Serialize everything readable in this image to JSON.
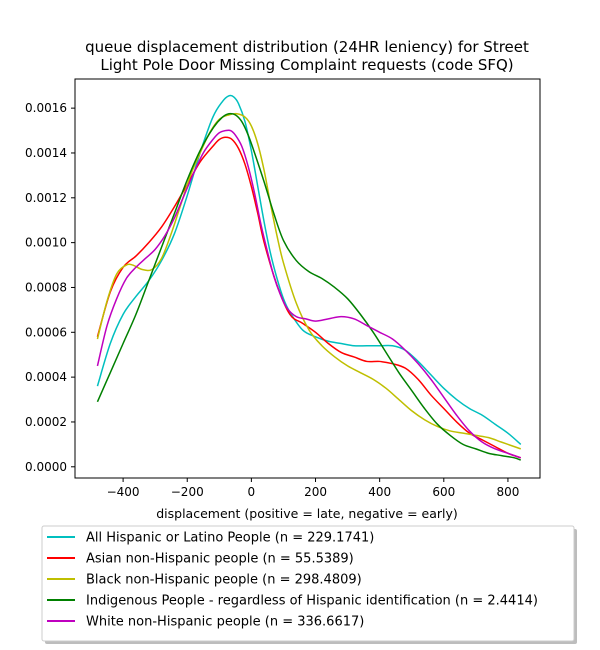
{
  "chart_data": {
    "type": "line",
    "title": [
      "queue displacement distribution (24HR leniency) for Street",
      "Light Pole Door Missing Complaint  requests (code SFQ)"
    ],
    "xlabel": "displacement (positive = late, negative = early)",
    "ylabel": "",
    "xlim": [
      -550,
      900
    ],
    "ylim": [
      -5e-05,
      0.00173
    ],
    "xticks": [
      -400,
      -200,
      0,
      200,
      400,
      600,
      800
    ],
    "xtick_labels": [
      "−400",
      "−200",
      "0",
      "200",
      "400",
      "600",
      "800"
    ],
    "yticks": [
      0.0,
      0.0002,
      0.0004,
      0.0006,
      0.0008,
      0.001,
      0.0012,
      0.0014,
      0.0016
    ],
    "ytick_labels": [
      "0.0000",
      "0.0002",
      "0.0004",
      "0.0006",
      "0.0008",
      "0.0010",
      "0.0012",
      "0.0014",
      "0.0016"
    ],
    "grid": false,
    "legend_position": "below",
    "series": [
      {
        "name": "All Hispanic or Latino People (n = 229.1741)",
        "color": "#00bfbf",
        "x": [
          -480,
          -440,
          -400,
          -360,
          -320,
          -280,
          -240,
          -200,
          -160,
          -120,
          -90,
          -70,
          -55,
          -40,
          -20,
          0,
          20,
          40,
          60,
          80,
          100,
          120,
          160,
          200,
          240,
          280,
          320,
          360,
          400,
          440,
          480,
          520,
          560,
          600,
          640,
          680,
          720,
          760,
          800,
          840
        ],
        "y": [
          0.00036,
          0.00055,
          0.00068,
          0.00076,
          0.00083,
          0.00092,
          0.00104,
          0.00121,
          0.0014,
          0.00156,
          0.00163,
          0.001655,
          0.00165,
          0.00162,
          0.00154,
          0.00141,
          0.00125,
          0.00109,
          0.00095,
          0.00084,
          0.00075,
          0.00069,
          0.00061,
          0.00058,
          0.00056,
          0.00055,
          0.00054,
          0.00054,
          0.00054,
          0.00054,
          0.00052,
          0.00047,
          0.00041,
          0.00035,
          0.0003,
          0.00026,
          0.00023,
          0.00019,
          0.00015,
          0.0001
        ]
      },
      {
        "name": "Asian non-Hispanic people (n = 55.5389)",
        "color": "#ff0000",
        "x": [
          -480,
          -440,
          -400,
          -360,
          -320,
          -280,
          -240,
          -200,
          -160,
          -120,
          -100,
          -80,
          -60,
          -40,
          -20,
          0,
          20,
          40,
          80,
          120,
          160,
          200,
          240,
          280,
          320,
          360,
          400,
          440,
          480,
          520,
          560,
          600,
          640,
          680,
          720,
          760,
          800,
          840
        ],
        "y": [
          0.00058,
          0.00078,
          0.00089,
          0.00094,
          0.001,
          0.00107,
          0.00116,
          0.00126,
          0.00136,
          0.00143,
          0.00146,
          0.00147,
          0.00146,
          0.00142,
          0.00135,
          0.00125,
          0.00113,
          0.001,
          0.00081,
          0.00068,
          0.00064,
          0.0006,
          0.00055,
          0.00051,
          0.00049,
          0.00047,
          0.00047,
          0.00046,
          0.00044,
          0.00039,
          0.00032,
          0.00026,
          0.0002,
          0.00015,
          0.00012,
          9e-05,
          6e-05,
          4e-05
        ]
      },
      {
        "name": "Black non-Hispanic people (n = 298.4809)",
        "color": "#bfbf00",
        "x": [
          -480,
          -450,
          -420,
          -390,
          -370,
          -340,
          -310,
          -280,
          -250,
          -220,
          -190,
          -160,
          -130,
          -100,
          -70,
          -45,
          -20,
          0,
          20,
          40,
          60,
          80,
          100,
          140,
          180,
          220,
          260,
          300,
          340,
          380,
          420,
          460,
          500,
          540,
          580,
          620,
          660,
          700,
          740,
          780,
          820,
          840
        ],
        "y": [
          0.00057,
          0.00074,
          0.00086,
          0.0009,
          0.0009,
          0.00088,
          0.00088,
          0.00093,
          0.00104,
          0.00117,
          0.0013,
          0.0014,
          0.00149,
          0.00155,
          0.00157,
          0.001575,
          0.00156,
          0.00152,
          0.00144,
          0.00132,
          0.00117,
          0.00103,
          0.00091,
          0.00073,
          0.00061,
          0.00054,
          0.00049,
          0.00045,
          0.00042,
          0.00039,
          0.00035,
          0.0003,
          0.00025,
          0.00021,
          0.00018,
          0.00016,
          0.00015,
          0.00014,
          0.00013,
          0.00011,
          9e-05,
          8e-05
        ]
      },
      {
        "name": "Indigenous People - regardless of Hispanic identification (n = 2.4414)",
        "color": "#008000",
        "x": [
          -480,
          -440,
          -400,
          -360,
          -320,
          -280,
          -240,
          -200,
          -160,
          -120,
          -90,
          -70,
          -50,
          -30,
          -10,
          10,
          40,
          70,
          100,
          140,
          180,
          220,
          260,
          300,
          340,
          380,
          420,
          460,
          500,
          540,
          580,
          620,
          660,
          700,
          740,
          780,
          820,
          840
        ],
        "y": [
          0.00029,
          0.00042,
          0.00055,
          0.00068,
          0.00083,
          0.00098,
          0.00113,
          0.00128,
          0.00141,
          0.00151,
          0.00156,
          0.001575,
          0.00157,
          0.00154,
          0.00148,
          0.0014,
          0.00127,
          0.00113,
          0.00101,
          0.00092,
          0.00087,
          0.00084,
          0.0008,
          0.00075,
          0.00068,
          0.0006,
          0.00051,
          0.00042,
          0.00034,
          0.00026,
          0.00019,
          0.00014,
          0.0001,
          8e-05,
          6e-05,
          5e-05,
          4e-05,
          3e-05
        ]
      },
      {
        "name": "White non-Hispanic people (n = 336.6617)",
        "color": "#bf00bf",
        "x": [
          -480,
          -450,
          -420,
          -390,
          -360,
          -330,
          -300,
          -270,
          -240,
          -210,
          -180,
          -150,
          -120,
          -100,
          -80,
          -65,
          -50,
          -30,
          -10,
          10,
          30,
          50,
          70,
          90,
          110,
          140,
          170,
          200,
          240,
          280,
          320,
          360,
          400,
          440,
          480,
          520,
          560,
          600,
          640,
          680,
          720,
          760,
          800,
          840
        ],
        "y": [
          0.00045,
          0.00063,
          0.00075,
          0.00084,
          0.00089,
          0.00093,
          0.00097,
          0.00103,
          0.00111,
          0.00121,
          0.00131,
          0.0014,
          0.00146,
          0.00149,
          0.0015,
          0.0015,
          0.00148,
          0.00143,
          0.00134,
          0.00122,
          0.00108,
          0.00096,
          0.00085,
          0.00077,
          0.00071,
          0.00067,
          0.00066,
          0.00065,
          0.00066,
          0.00067,
          0.00066,
          0.00063,
          0.0006,
          0.00057,
          0.00052,
          0.00046,
          0.00039,
          0.00031,
          0.00023,
          0.00016,
          0.00011,
          8e-05,
          6e-05,
          4e-05
        ]
      }
    ]
  }
}
